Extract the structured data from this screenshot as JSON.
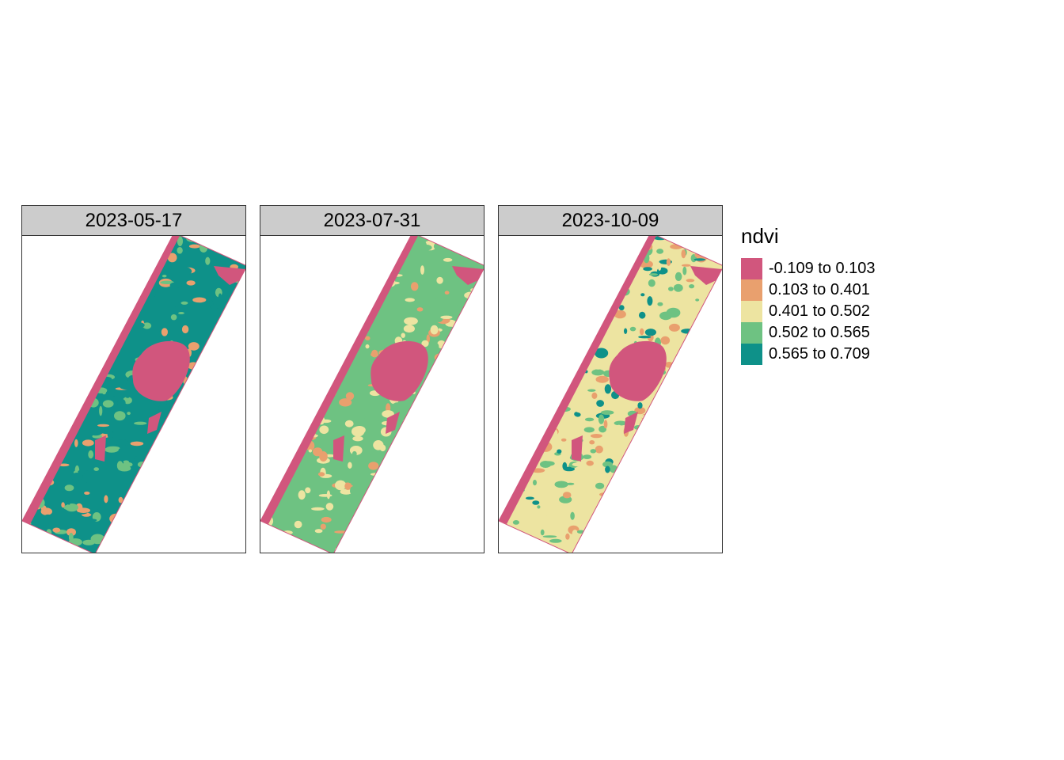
{
  "legend": {
    "title": "ndvi",
    "classes": [
      {
        "label": "-0.109 to 0.103",
        "color": "#d1567d"
      },
      {
        "label": "0.103 to 0.401",
        "color": "#e9a06e"
      },
      {
        "label": "0.401 to 0.502",
        "color": "#ede4a1"
      },
      {
        "label": "0.502 to 0.565",
        "color": "#6ec282"
      },
      {
        "label": "0.565 to 0.709",
        "color": "#0e9189"
      }
    ]
  },
  "panels": [
    {
      "title": "2023-05-17",
      "dominant_class": 4,
      "secondary_class": 3
    },
    {
      "title": "2023-07-31",
      "dominant_class": 3,
      "secondary_class": 2
    },
    {
      "title": "2023-10-09",
      "dominant_class": 2,
      "secondary_class": 3
    }
  ]
}
